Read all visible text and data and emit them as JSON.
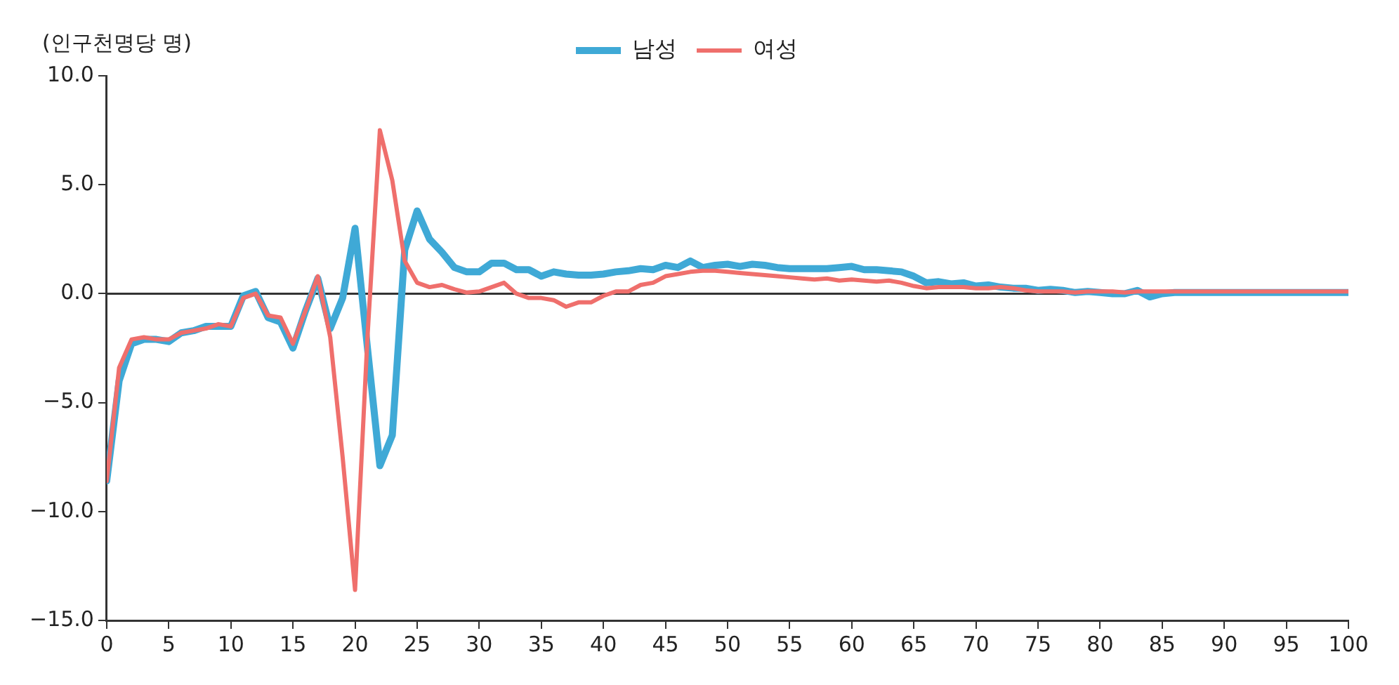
{
  "chart_data": {
    "type": "line",
    "ylabel": "(인구천명당 명)",
    "x": [
      0,
      1,
      2,
      3,
      4,
      5,
      6,
      7,
      8,
      9,
      10,
      11,
      12,
      13,
      14,
      15,
      16,
      17,
      18,
      19,
      20,
      21,
      22,
      23,
      24,
      25,
      26,
      27,
      28,
      29,
      30,
      31,
      32,
      33,
      34,
      35,
      36,
      37,
      38,
      39,
      40,
      41,
      42,
      43,
      44,
      45,
      46,
      47,
      48,
      49,
      50,
      51,
      52,
      53,
      54,
      55,
      56,
      57,
      58,
      59,
      60,
      61,
      62,
      63,
      64,
      65,
      66,
      67,
      68,
      69,
      70,
      71,
      72,
      73,
      74,
      75,
      76,
      77,
      78,
      79,
      80,
      81,
      82,
      83,
      84,
      85,
      86,
      87,
      88,
      89,
      90,
      91,
      92,
      93,
      94,
      95,
      96,
      97,
      98,
      99,
      100
    ],
    "series": [
      {
        "name": "남성",
        "color": "#3fa9d6",
        "values": [
          -8.6,
          -4.0,
          -2.3,
          -2.1,
          -2.1,
          -2.2,
          -1.8,
          -1.7,
          -1.5,
          -1.5,
          -1.5,
          -0.1,
          0.1,
          -1.1,
          -1.3,
          -2.5,
          -0.8,
          0.7,
          -1.6,
          -0.2,
          3.0,
          -2.5,
          -7.9,
          -6.5,
          2.0,
          3.8,
          2.5,
          1.9,
          1.2,
          1.0,
          1.0,
          1.4,
          1.4,
          1.1,
          1.1,
          0.8,
          1.0,
          0.9,
          0.85,
          0.85,
          0.9,
          1.0,
          1.05,
          1.15,
          1.1,
          1.3,
          1.2,
          1.5,
          1.2,
          1.3,
          1.35,
          1.25,
          1.35,
          1.3,
          1.2,
          1.15,
          1.15,
          1.15,
          1.15,
          1.2,
          1.25,
          1.1,
          1.1,
          1.05,
          1.0,
          0.8,
          0.5,
          0.55,
          0.45,
          0.5,
          0.35,
          0.4,
          0.3,
          0.25,
          0.25,
          0.15,
          0.2,
          0.15,
          0.05,
          0.1,
          0.05,
          0.0,
          0.0,
          0.15,
          -0.15,
          0.0,
          0.05,
          0.05,
          0.05,
          0.05,
          0.05,
          0.05,
          0.05,
          0.05,
          0.05,
          0.05,
          0.05,
          0.05,
          0.05,
          0.05,
          0.05
        ]
      },
      {
        "name": "여성",
        "color": "#ef6f6c",
        "values": [
          -8.6,
          -3.4,
          -2.1,
          -2.0,
          -2.1,
          -2.1,
          -1.8,
          -1.7,
          -1.6,
          -1.4,
          -1.5,
          -0.2,
          0.0,
          -1.0,
          -1.1,
          -2.3,
          -0.8,
          0.8,
          -2.0,
          -7.5,
          -13.6,
          -2.0,
          7.5,
          5.2,
          1.5,
          0.5,
          0.3,
          0.4,
          0.2,
          0.05,
          0.1,
          0.3,
          0.5,
          0.0,
          -0.2,
          -0.2,
          -0.3,
          -0.6,
          -0.4,
          -0.4,
          -0.1,
          0.1,
          0.1,
          0.4,
          0.5,
          0.8,
          0.9,
          1.0,
          1.05,
          1.05,
          1.0,
          0.95,
          0.9,
          0.85,
          0.8,
          0.75,
          0.7,
          0.65,
          0.7,
          0.6,
          0.65,
          0.6,
          0.55,
          0.6,
          0.5,
          0.35,
          0.25,
          0.3,
          0.3,
          0.3,
          0.25,
          0.25,
          0.3,
          0.25,
          0.15,
          0.1,
          0.1,
          0.1,
          0.05,
          0.1,
          0.1,
          0.1,
          0.05,
          0.1,
          0.1,
          0.1,
          0.1,
          0.1,
          0.1,
          0.1,
          0.1,
          0.1,
          0.1,
          0.1,
          0.1,
          0.1,
          0.1,
          0.1,
          0.1,
          0.1,
          0.1
        ]
      }
    ],
    "xlim": [
      0,
      100
    ],
    "xticks": [
      0,
      5,
      10,
      15,
      20,
      25,
      30,
      35,
      40,
      45,
      50,
      55,
      60,
      65,
      70,
      75,
      80,
      85,
      90,
      95,
      100
    ],
    "ylim": [
      -15,
      10
    ],
    "yticks": [
      {
        "value": -15,
        "label": "−15.0"
      },
      {
        "value": -10,
        "label": "−10.0"
      },
      {
        "value": -5,
        "label": "−5.0"
      },
      {
        "value": 0,
        "label": "0.0"
      },
      {
        "value": 5,
        "label": "5.0"
      },
      {
        "value": 10,
        "label": "10.0"
      }
    ],
    "ref_lines": [
      {
        "axis": "y",
        "value": 0,
        "color": "#333333"
      }
    ],
    "grid": false,
    "legend": "top",
    "marker": "none",
    "line_style": "solid"
  }
}
